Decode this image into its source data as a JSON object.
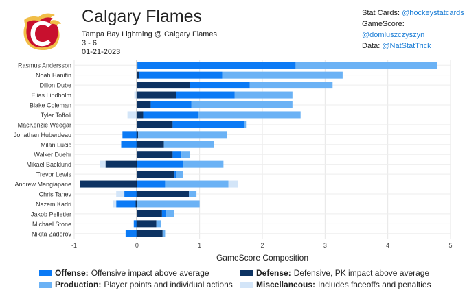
{
  "header": {
    "title": "Calgary Flames",
    "matchup": "Tampa Bay Lightning @ Calgary Flames",
    "score": "3 - 6",
    "date": "01-21-2023"
  },
  "credits": [
    {
      "label": "Stat Cards:",
      "handle": "@hockeystatcards"
    },
    {
      "label": "GameScore:",
      "handle": "@domluszczyszyn"
    },
    {
      "label": "Data:",
      "handle": "@NatStatTrick"
    }
  ],
  "colors": {
    "offense": "#0b7af5",
    "production": "#6bb2f5",
    "defense": "#0d3363",
    "misc": "#d3e5f8",
    "team_red": "#c8102e",
    "team_yellow": "#f1be48"
  },
  "legend": [
    {
      "key": "offense",
      "name": "Offense:",
      "desc": "Offensive impact above average"
    },
    {
      "key": "defense",
      "name": "Defense:",
      "desc": "Defensive, PK impact above average"
    },
    {
      "key": "production",
      "name": "Production:",
      "desc": "Player points and individual actions"
    },
    {
      "key": "misc",
      "name": "Miscellaneous:",
      "desc": "Includes faceoffs and penalties"
    }
  ],
  "chart_data": {
    "type": "bar",
    "orientation": "horizontal-stacked",
    "xlabel": "GameScore Composition",
    "xlim": [
      -1,
      5
    ],
    "xticks": [
      -1,
      0,
      1,
      2,
      3,
      4,
      5
    ],
    "grid": true,
    "stack_order": [
      "defense",
      "offense",
      "production",
      "misc"
    ],
    "categories": [
      "Rasmus Andersson",
      "Noah Hanifin",
      "Dillon Dube",
      "Elias Lindholm",
      "Blake Coleman",
      "Tyler Toffoli",
      "MacKenzie Weegar",
      "Jonathan Huberdeau",
      "Milan Lucic",
      "Walker Duehr",
      "Mikael Backlund",
      "Trevor Lewis",
      "Andrew Mangiapane",
      "Chris Tanev",
      "Nazem Kadri",
      "Jakob Pelletier",
      "Michael Stone",
      "Nikita Zadorov"
    ],
    "series": [
      {
        "name": "Defense",
        "key": "defense",
        "values": [
          0.01,
          0.04,
          0.85,
          0.63,
          0.22,
          0.1,
          0.57,
          0.02,
          0.43,
          0.57,
          -0.5,
          0.6,
          -0.91,
          0.83,
          -0.02,
          0.4,
          0.31,
          0.41
        ]
      },
      {
        "name": "Offense",
        "key": "offense",
        "values": [
          2.52,
          1.32,
          0.95,
          0.93,
          0.65,
          0.88,
          1.14,
          -0.23,
          -0.25,
          0.14,
          0.74,
          0.03,
          0.45,
          -0.2,
          -0.31,
          0.07,
          -0.05,
          -0.18
        ]
      },
      {
        "name": "Production",
        "key": "production",
        "values": [
          2.26,
          1.92,
          1.32,
          0.92,
          1.61,
          1.63,
          0.03,
          1.42,
          0.8,
          0.13,
          0.64,
          0.1,
          1.01,
          0.12,
          1.0,
          0.12,
          0.07,
          0.04
        ]
      },
      {
        "name": "Miscellaneous",
        "key": "misc",
        "values": [
          0,
          0,
          0,
          -0.04,
          0,
          -0.15,
          0,
          0,
          0,
          0,
          -0.09,
          0,
          0.15,
          -0.13,
          -0.05,
          0,
          0,
          0
        ]
      }
    ]
  }
}
